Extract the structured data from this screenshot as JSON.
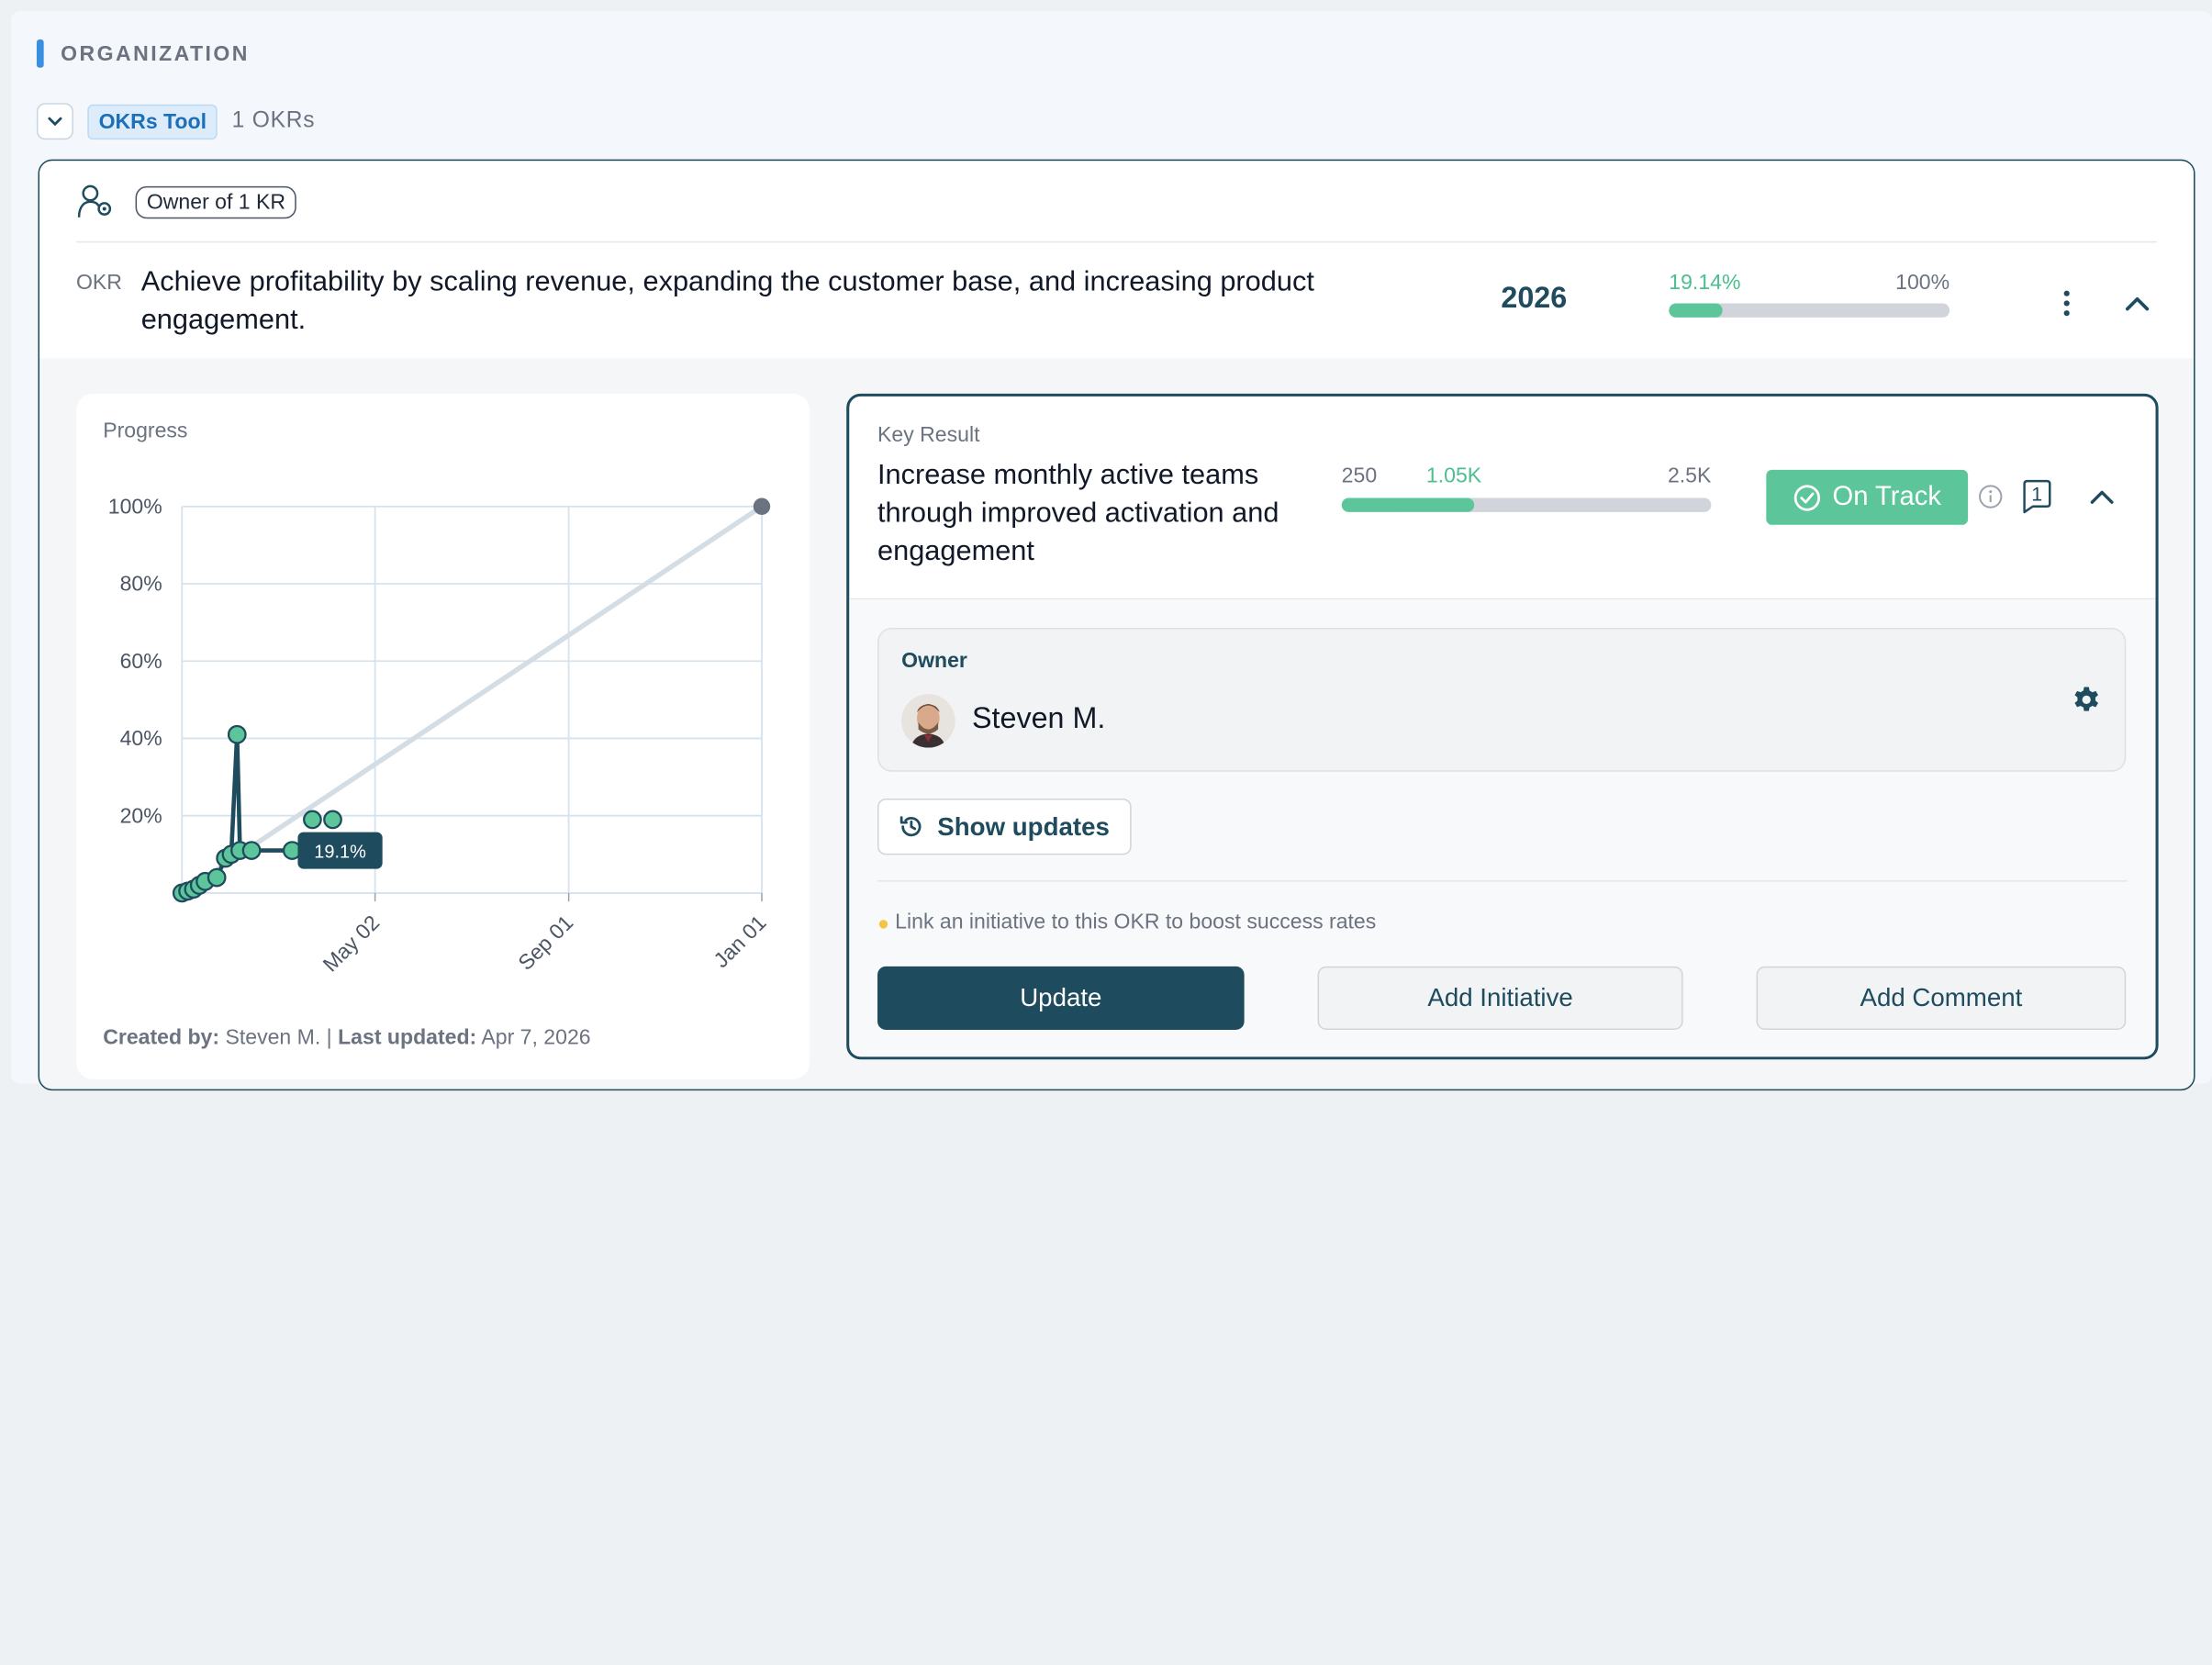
{
  "section": {
    "title": "ORGANIZATION"
  },
  "group": {
    "tag": "OKRs Tool",
    "count": "1 OKRs"
  },
  "okr": {
    "badge": "Owner of 1 KR",
    "label": "OKR",
    "title": "Achieve profitability by scaling revenue, expanding the customer base, and increasing product engagement.",
    "year": "2026",
    "progress_label": "19.14%",
    "target_label": "100%",
    "progress_fraction": 0.1914
  },
  "chart": {
    "title": "Progress",
    "created_by_label": "Created by:",
    "created_by": "Steven M.",
    "last_updated_label": "Last updated:",
    "last_updated": "Apr 7, 2026",
    "tooltip": "19.1%"
  },
  "chart_data": {
    "type": "line",
    "title": "Progress",
    "xlabel": "",
    "ylabel": "",
    "x_tick_labels": [
      "May 02",
      "Sep 01",
      "Jan 01"
    ],
    "y_tick_labels": [
      "20%",
      "40%",
      "60%",
      "80%",
      "100%"
    ],
    "ylim": [
      0,
      100
    ],
    "grid": true,
    "series": [
      {
        "role": "target",
        "points": [
          [
            0,
            0
          ],
          [
            1,
            100
          ]
        ]
      },
      {
        "role": "actual",
        "points": [
          [
            0.0,
            0
          ],
          [
            0.01,
            0.5
          ],
          [
            0.02,
            1
          ],
          [
            0.03,
            2
          ],
          [
            0.04,
            3
          ],
          [
            0.06,
            4
          ],
          [
            0.075,
            9
          ],
          [
            0.085,
            10
          ],
          [
            0.095,
            41
          ],
          [
            0.1,
            11
          ],
          [
            0.12,
            11
          ],
          [
            0.19,
            11
          ]
        ]
      },
      {
        "role": "markers",
        "points": [
          [
            0.225,
            19
          ],
          [
            0.26,
            19
          ]
        ]
      }
    ]
  },
  "kr": {
    "label": "Key Result",
    "title": "Increase monthly active teams through improved activation and engagement",
    "start": "250",
    "current": "1.05K",
    "target": "2.5K",
    "progress_fraction": 0.36,
    "status": "On Track",
    "comment_count": "1",
    "owner_label": "Owner",
    "owner_name": "Steven M.",
    "show_updates": "Show updates",
    "tip": "Link an initiative to this OKR to boost success rates",
    "update_btn": "Update",
    "add_initiative_btn": "Add Initiative",
    "add_comment_btn": "Add Comment"
  },
  "colors": {
    "accent": "#1e4b5e",
    "success": "#5cc69a",
    "tag": "#1d6fb8"
  }
}
